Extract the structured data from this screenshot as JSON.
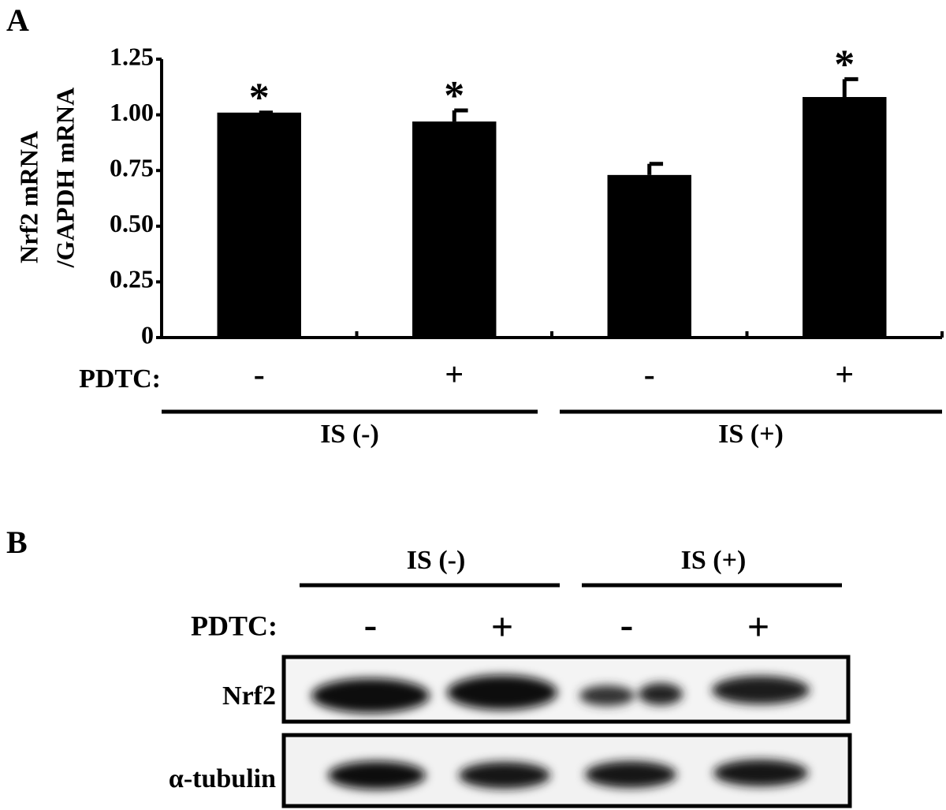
{
  "chart_data": {
    "type": "bar",
    "panel_label": "A",
    "ylabel": [
      "Nrf2 mRNA",
      "/GAPDH mRNA"
    ],
    "category_title": "PDTC:",
    "categories": [
      "-",
      "+",
      "-",
      "+"
    ],
    "groups": [
      "IS (-)",
      "IS (+)"
    ],
    "values": [
      1.01,
      0.97,
      0.73,
      1.08
    ],
    "errors": [
      0,
      0.05,
      0.05,
      0.08
    ],
    "annotations": [
      "*",
      "*",
      null,
      "*"
    ],
    "color": "#000000",
    "ylim": [
      0,
      1.25
    ],
    "yticks": [
      0,
      0.25,
      {
        "value": 0.5,
        "label": "0.50"
      },
      0.75,
      {
        "value": 1.0,
        "label": "1.00"
      },
      1.25
    ]
  },
  "blot": {
    "panel_label": "B",
    "groups": [
      "IS (-)",
      "IS (+)"
    ],
    "treatment_label": "PDTC:",
    "lanes": [
      "-",
      "+",
      "-",
      "+"
    ],
    "rows": [
      "Nrf2",
      "α-tubulin"
    ]
  }
}
